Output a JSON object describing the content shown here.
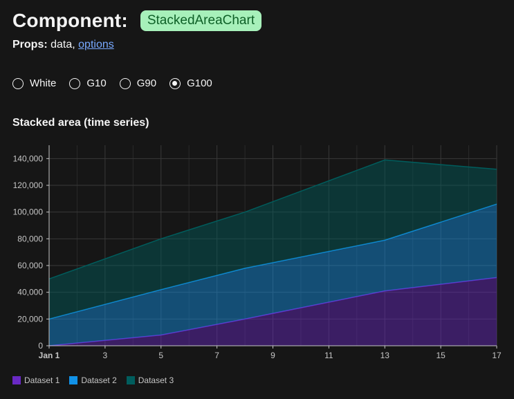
{
  "header": {
    "title": "Component:",
    "component": "StackedAreaChart"
  },
  "props": {
    "label": "Props:",
    "text": " data, ",
    "link": "options"
  },
  "themes": [
    {
      "label": "White",
      "checked": false
    },
    {
      "label": "G10",
      "checked": false
    },
    {
      "label": "G90",
      "checked": false
    },
    {
      "label": "G100",
      "checked": true
    }
  ],
  "chart_title": "Stacked area (time series)",
  "chart_data": {
    "type": "area",
    "stacked": true,
    "x_ticks": [
      "Jan 1",
      "3",
      "5",
      "7",
      "9",
      "11",
      "13",
      "15",
      "17"
    ],
    "y_ticks": [
      "0",
      "20,000",
      "40,000",
      "60,000",
      "80,000",
      "100,000",
      "120,000",
      "140,000"
    ],
    "xlim": [
      "Jan 1",
      "Jan 17"
    ],
    "ylim": [
      0,
      150000
    ],
    "grid": true,
    "legend_position": "bottom-left",
    "x": [
      "Jan 1",
      "Jan 5",
      "Jan 8",
      "Jan 13",
      "Jan 17"
    ],
    "series": [
      {
        "name": "Dataset 1",
        "color": "#6929c4",
        "values": [
          0,
          8000,
          20000,
          41000,
          51000
        ]
      },
      {
        "name": "Dataset 2",
        "color": "#1192e8",
        "values": [
          20000,
          34000,
          38000,
          38000,
          55000
        ]
      },
      {
        "name": "Dataset 3",
        "color": "#005d5d",
        "values": [
          30000,
          38000,
          42000,
          60000,
          26000
        ]
      }
    ]
  }
}
